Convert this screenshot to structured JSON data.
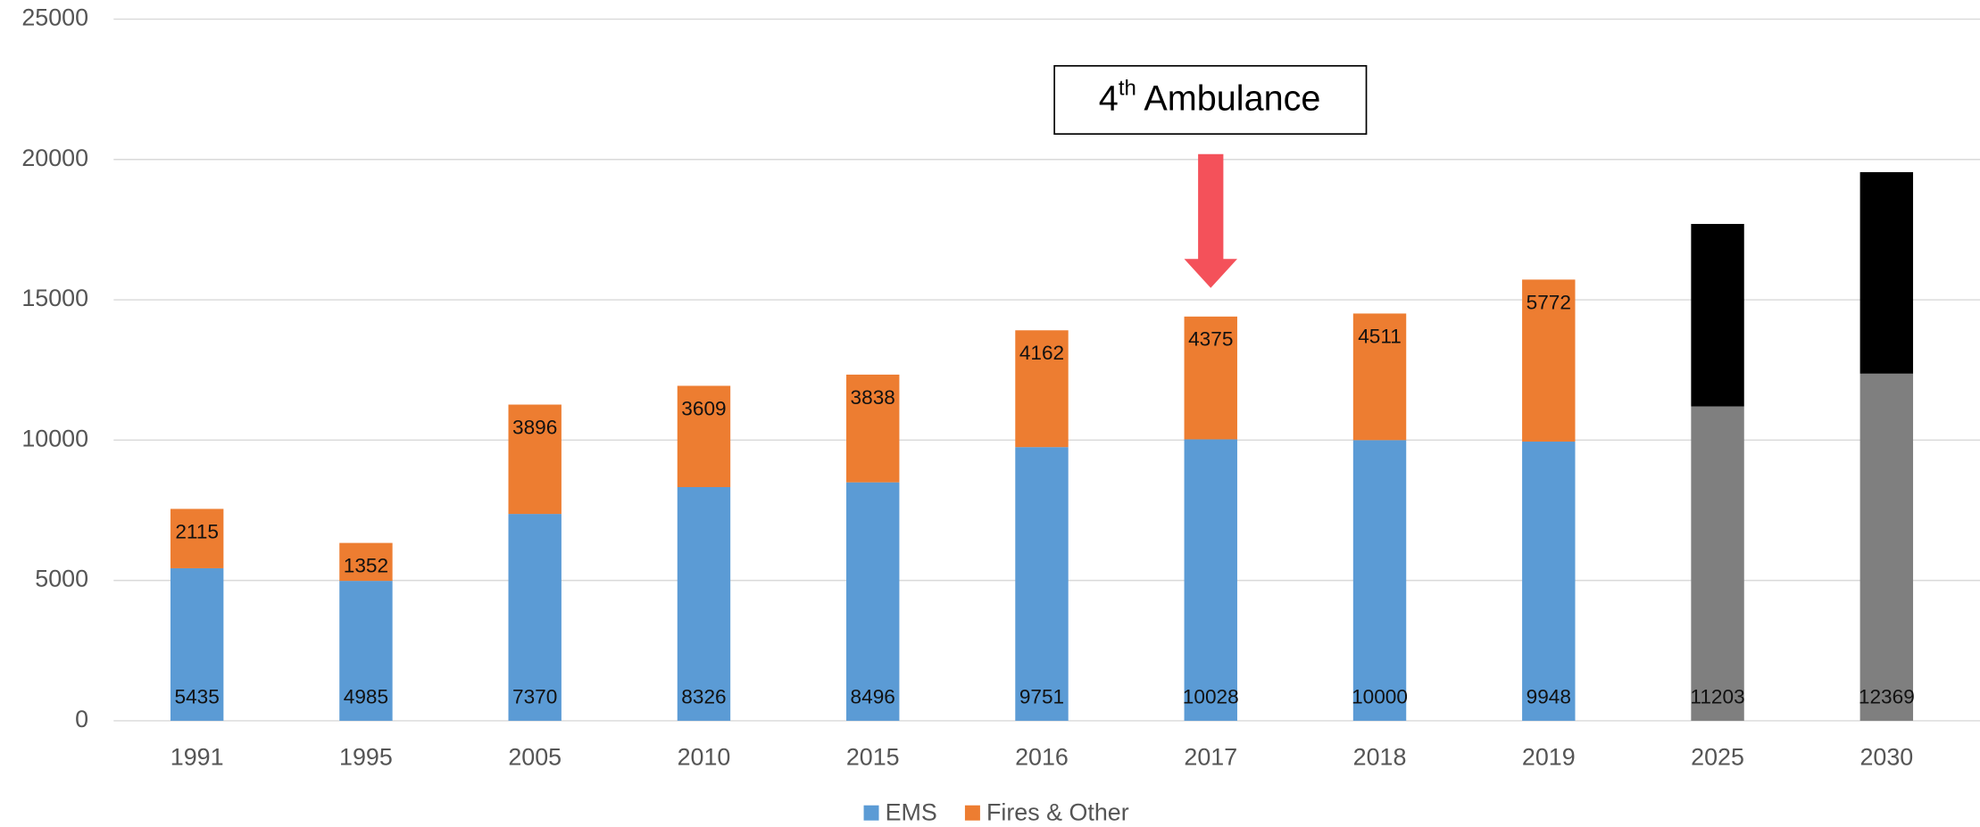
{
  "chart_data": {
    "type": "stacked-bar",
    "categories": [
      "1991",
      "1995",
      "2005",
      "2010",
      "2015",
      "2016",
      "2017",
      "2018",
      "2019",
      "2025",
      "2030"
    ],
    "series": [
      {
        "name": "EMS",
        "color": "#5b9bd5",
        "colors": [
          "#5b9bd5",
          "#5b9bd5",
          "#5b9bd5",
          "#5b9bd5",
          "#5b9bd5",
          "#5b9bd5",
          "#5b9bd5",
          "#5b9bd5",
          "#5b9bd5",
          "#7f7f7f",
          "#7f7f7f"
        ],
        "values": [
          5435,
          4985,
          7370,
          8326,
          8496,
          9751,
          10028,
          10000,
          9948,
          11203,
          12369
        ],
        "value_labels": [
          "5435",
          "4985",
          "7370",
          "8326",
          "8496",
          "9751",
          "10028",
          "10000",
          "9948",
          "11203",
          "12369"
        ]
      },
      {
        "name": "Fires & Other",
        "color": "#ed7d31",
        "colors": [
          "#ed7d31",
          "#ed7d31",
          "#ed7d31",
          "#ed7d31",
          "#ed7d31",
          "#ed7d31",
          "#ed7d31",
          "#ed7d31",
          "#ed7d31",
          "#000000",
          "#000000"
        ],
        "values": [
          2115,
          1352,
          3896,
          3609,
          3838,
          4162,
          4375,
          4511,
          5772,
          6500,
          7180
        ],
        "value_labels": [
          "2115",
          "1352",
          "3896",
          "3609",
          "3838",
          "4162",
          "4375",
          "4511",
          "5772",
          null,
          null
        ]
      }
    ],
    "annotation": {
      "parts": [
        "4",
        "th",
        "Ambulance"
      ],
      "category": "2017"
    },
    "ylim": [
      0,
      25000
    ],
    "yticks": [
      0,
      5000,
      10000,
      15000,
      20000,
      25000
    ],
    "grid": true,
    "legend": "bottom"
  }
}
